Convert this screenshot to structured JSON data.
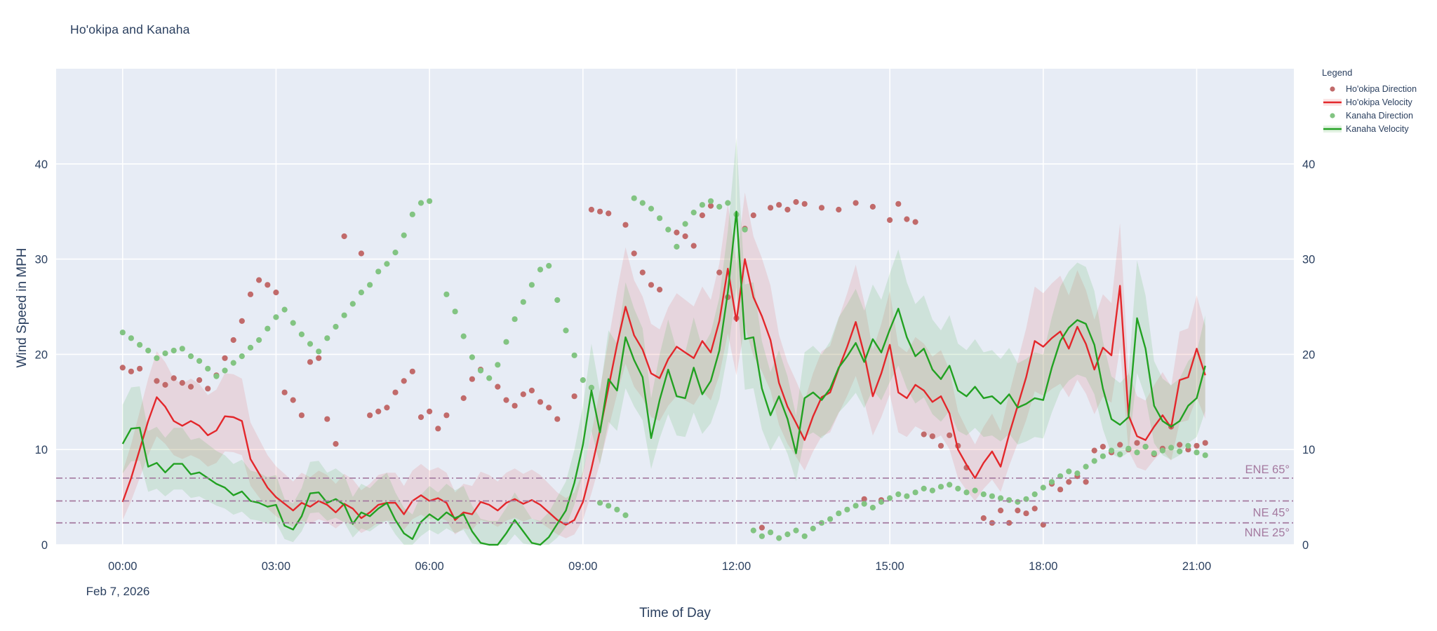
{
  "title": "Ho'okipa and Kanaha",
  "date_label": "Feb 7, 2026",
  "colors": {
    "paper": "#ffffff",
    "plot_bg": "#e7ecf5",
    "grid": "#ffffff",
    "text": "#2a3f5f",
    "hookipa": "#e3272b",
    "kanaha": "#22a122",
    "hookipa_dot": "#c16a6a",
    "kanaha_dot": "#82c482",
    "hookipa_band": "rgba(222,64,64,0.13)",
    "kanaha_band": "rgba(60,168,60,0.14)",
    "refline": "#a4799f"
  },
  "legend": {
    "title": "Legend",
    "items": [
      {
        "label": "Ho'okipa Direction",
        "marker": "dot",
        "color_key": "hookipa_dot"
      },
      {
        "label": "Ho'okipa Velocity",
        "marker": "line",
        "color_key": "hookipa",
        "band_key": "hookipa_band"
      },
      {
        "label": "Kanaha Direction",
        "marker": "dot",
        "color_key": "kanaha_dot"
      },
      {
        "label": "Kanaha Velocity",
        "marker": "line",
        "color_key": "kanaha",
        "band_key": "kanaha_band"
      }
    ]
  },
  "ref_lines": [
    {
      "label": "ENE 65°",
      "y": 7.0
    },
    {
      "label": "NE 45°",
      "y": 4.6
    },
    {
      "label": "NNE 25°",
      "y": 2.3
    }
  ],
  "chart_data": {
    "type": "line",
    "title": "Ho'okipa and Kanaha",
    "xlabel": "Time of Day",
    "ylabel": "Wind Speed in MPH",
    "x_domain": [
      -1.3,
      22.9
    ],
    "y_domain": [
      0,
      50
    ],
    "x_ticks": [
      {
        "hour": 0,
        "label": "00:00"
      },
      {
        "hour": 3,
        "label": "03:00"
      },
      {
        "hour": 6,
        "label": "06:00"
      },
      {
        "hour": 9,
        "label": "09:00"
      },
      {
        "hour": 12,
        "label": "12:00"
      },
      {
        "hour": 15,
        "label": "15:00"
      },
      {
        "hour": 18,
        "label": "18:00"
      },
      {
        "hour": 21,
        "label": "21:00"
      }
    ],
    "y_ticks": [
      0,
      10,
      20,
      30,
      40
    ],
    "time_minutes": {
      "start": 0,
      "step": 10,
      "count": 128
    },
    "band_model": {
      "lo_k": 0.8,
      "lo_b": -1.0,
      "hi_k": 1.15,
      "hi_b": 2.5,
      "min": 0
    },
    "series": [
      {
        "name": "Ho'okipa Direction",
        "type": "scatter",
        "color_key": "hookipa_dot",
        "values": [
          18.6,
          18.2,
          18.5,
          null,
          17.2,
          16.8,
          17.5,
          17,
          16.6,
          17.3,
          16.4,
          17.8,
          19.6,
          21.5,
          23.5,
          26.3,
          27.8,
          27.3,
          26.5,
          16,
          15.2,
          13.6,
          19.2,
          19.6,
          13.2,
          10.6,
          32.4,
          null,
          30.6,
          13.6,
          14,
          14.4,
          16,
          17.2,
          18.2,
          13.4,
          14,
          12.2,
          13.6,
          null,
          15.4,
          17.4,
          18.4,
          null,
          16.6,
          15.2,
          14.6,
          15.8,
          16.2,
          15,
          14.4,
          13.2,
          null,
          15.6,
          null,
          35.2,
          35,
          34.8,
          null,
          33.6,
          30.6,
          28.6,
          27.3,
          26.8,
          null,
          32.8,
          32.4,
          31.4,
          34.6,
          35.6,
          28.6,
          26,
          23.8,
          33.2,
          34.6,
          1.8,
          35.4,
          35.7,
          35.2,
          36,
          35.8,
          null,
          35.4,
          null,
          35.2,
          null,
          35.9,
          4.8,
          35.5,
          4.7,
          34.1,
          35.8,
          34.2,
          33.9,
          11.6,
          11.4,
          10.4,
          11.5,
          10.4,
          8.1,
          null,
          2.8,
          2.3,
          3.6,
          2.3,
          3.6,
          3.3,
          3.8,
          2.1,
          6.4,
          5.8,
          6.6,
          7.2,
          6.6,
          9.9,
          10.3,
          9.7,
          10.5,
          10,
          10.7,
          10.3,
          9.5,
          10.1,
          12.4,
          10.5,
          10,
          10.4,
          10.7
        ]
      },
      {
        "name": "Ho'okipa Velocity",
        "type": "line",
        "color_key": "hookipa",
        "band_key": "hookipa_band",
        "values": [
          4.5,
          7,
          10,
          13,
          15.5,
          14.5,
          13,
          12.5,
          13,
          12.5,
          11.5,
          12,
          13.5,
          13.4,
          13,
          9,
          7.5,
          6,
          5,
          4.3,
          3.6,
          4.4,
          4,
          4.6,
          4.2,
          3.4,
          4.3,
          3.8,
          2.8,
          3.4,
          4.2,
          4.4,
          4.4,
          3.2,
          4.6,
          5.2,
          4.6,
          4.9,
          4.4,
          2.6,
          3.4,
          3.2,
          4.5,
          4.2,
          3.6,
          4.4,
          4.8,
          4.3,
          4.7,
          4.2,
          3.4,
          2.6,
          2.1,
          2.6,
          4.5,
          8,
          12,
          16.5,
          21,
          25,
          22,
          20.5,
          18,
          17.5,
          19.5,
          20.8,
          20.2,
          19.6,
          21.4,
          20.2,
          23.5,
          29,
          23.5,
          30,
          26,
          24,
          21.5,
          17,
          14.5,
          12.8,
          11,
          13.5,
          15.5,
          16,
          18.5,
          20.8,
          23.4,
          20,
          15.6,
          18,
          21,
          16,
          15.4,
          16.8,
          16.2,
          15,
          15.6,
          13.8,
          10,
          8.4,
          7,
          8.6,
          9.8,
          8.2,
          11.6,
          14.6,
          17.6,
          21.4,
          20.8,
          21.7,
          22.4,
          20.6,
          22.9,
          21.1,
          18.4,
          20.7,
          19.9,
          27.2,
          13.6,
          11.4,
          11,
          12.4,
          13.6,
          12.3,
          17.3,
          17.6,
          20.6,
          17.8
        ]
      },
      {
        "name": "Kanaha Direction",
        "type": "scatter",
        "color_key": "kanaha_dot",
        "values": [
          22.3,
          21.7,
          21,
          20.4,
          19.6,
          20.1,
          20.4,
          20.6,
          19.8,
          19.3,
          18.5,
          17.7,
          18.3,
          19.1,
          19.8,
          20.7,
          21.5,
          22.7,
          23.9,
          24.7,
          23.3,
          22.1,
          21.1,
          20.3,
          21.7,
          22.9,
          24.1,
          25.3,
          26.5,
          27.3,
          28.7,
          29.5,
          30.7,
          32.5,
          34.7,
          35.9,
          36.1,
          null,
          26.3,
          24.5,
          21.9,
          19.7,
          18.3,
          17.5,
          18.9,
          21.3,
          23.7,
          25.5,
          27.3,
          28.9,
          29.3,
          25.7,
          22.5,
          19.9,
          17.3,
          16.5,
          4.4,
          4.1,
          3.7,
          3.1,
          36.4,
          35.9,
          35.3,
          34.3,
          33.1,
          31.3,
          33.7,
          34.9,
          35.7,
          36.1,
          35.5,
          35.9,
          34.7,
          33.1,
          1.5,
          0.9,
          1.3,
          0.7,
          1.1,
          1.5,
          0.9,
          1.7,
          2.3,
          2.7,
          3.3,
          3.7,
          4.1,
          4.3,
          3.9,
          4.5,
          4.9,
          5.3,
          5.1,
          5.5,
          5.9,
          5.7,
          6.1,
          6.3,
          5.9,
          5.5,
          5.7,
          5.3,
          5.1,
          4.9,
          4.7,
          4.5,
          4.8,
          5.3,
          6,
          6.6,
          7.2,
          7.7,
          7.5,
          8.2,
          8.8,
          9.3,
          9.9,
          9.5,
          10.1,
          9.7,
          10.3,
          9.6,
          9.9,
          10.2,
          9.8,
          10.4,
          9.7,
          9.4
        ]
      },
      {
        "name": "Kanaha Velocity",
        "type": "line",
        "color_key": "kanaha",
        "band_key": "kanaha_band",
        "values": [
          10.6,
          12.2,
          12.3,
          8.2,
          8.6,
          7.6,
          8.5,
          8.5,
          7.4,
          7.6,
          7,
          6.4,
          6,
          5.2,
          5.6,
          4.6,
          4.4,
          4,
          4.2,
          2,
          1.6,
          3,
          5.4,
          5.5,
          4.4,
          4.8,
          4.2,
          2.2,
          3.4,
          3,
          3.8,
          4.4,
          2.6,
          1.2,
          0.6,
          2.4,
          3.2,
          2.6,
          3.4,
          2.8,
          3.2,
          1.4,
          0.2,
          0,
          0,
          1.2,
          2.6,
          1.4,
          0.2,
          0,
          0.8,
          2.2,
          3.6,
          6.5,
          10.5,
          16.2,
          11.8,
          17.4,
          16.2,
          21.8,
          19.4,
          17.6,
          11.2,
          15.2,
          18.4,
          15.6,
          15.4,
          18.6,
          15.8,
          17.2,
          20.4,
          26.5,
          35,
          21.6,
          21.8,
          16.4,
          13.6,
          15.6,
          13.2,
          9.6,
          15.4,
          16,
          15.2,
          16.4,
          18.6,
          19.8,
          21.2,
          19.2,
          21.6,
          20.2,
          22.6,
          24.8,
          21.8,
          19.8,
          20.6,
          18.4,
          17.4,
          18.8,
          16.2,
          15.6,
          16.6,
          15.4,
          15.6,
          14.8,
          15.8,
          14.4,
          14.8,
          15.4,
          15.2,
          18.6,
          21.4,
          22.8,
          23.6,
          23.2,
          21,
          16.4,
          13.2,
          12.6,
          13.4,
          23.8,
          20.6,
          14.6,
          13,
          12.4,
          13,
          14.6,
          15.4,
          18.8
        ]
      }
    ]
  }
}
